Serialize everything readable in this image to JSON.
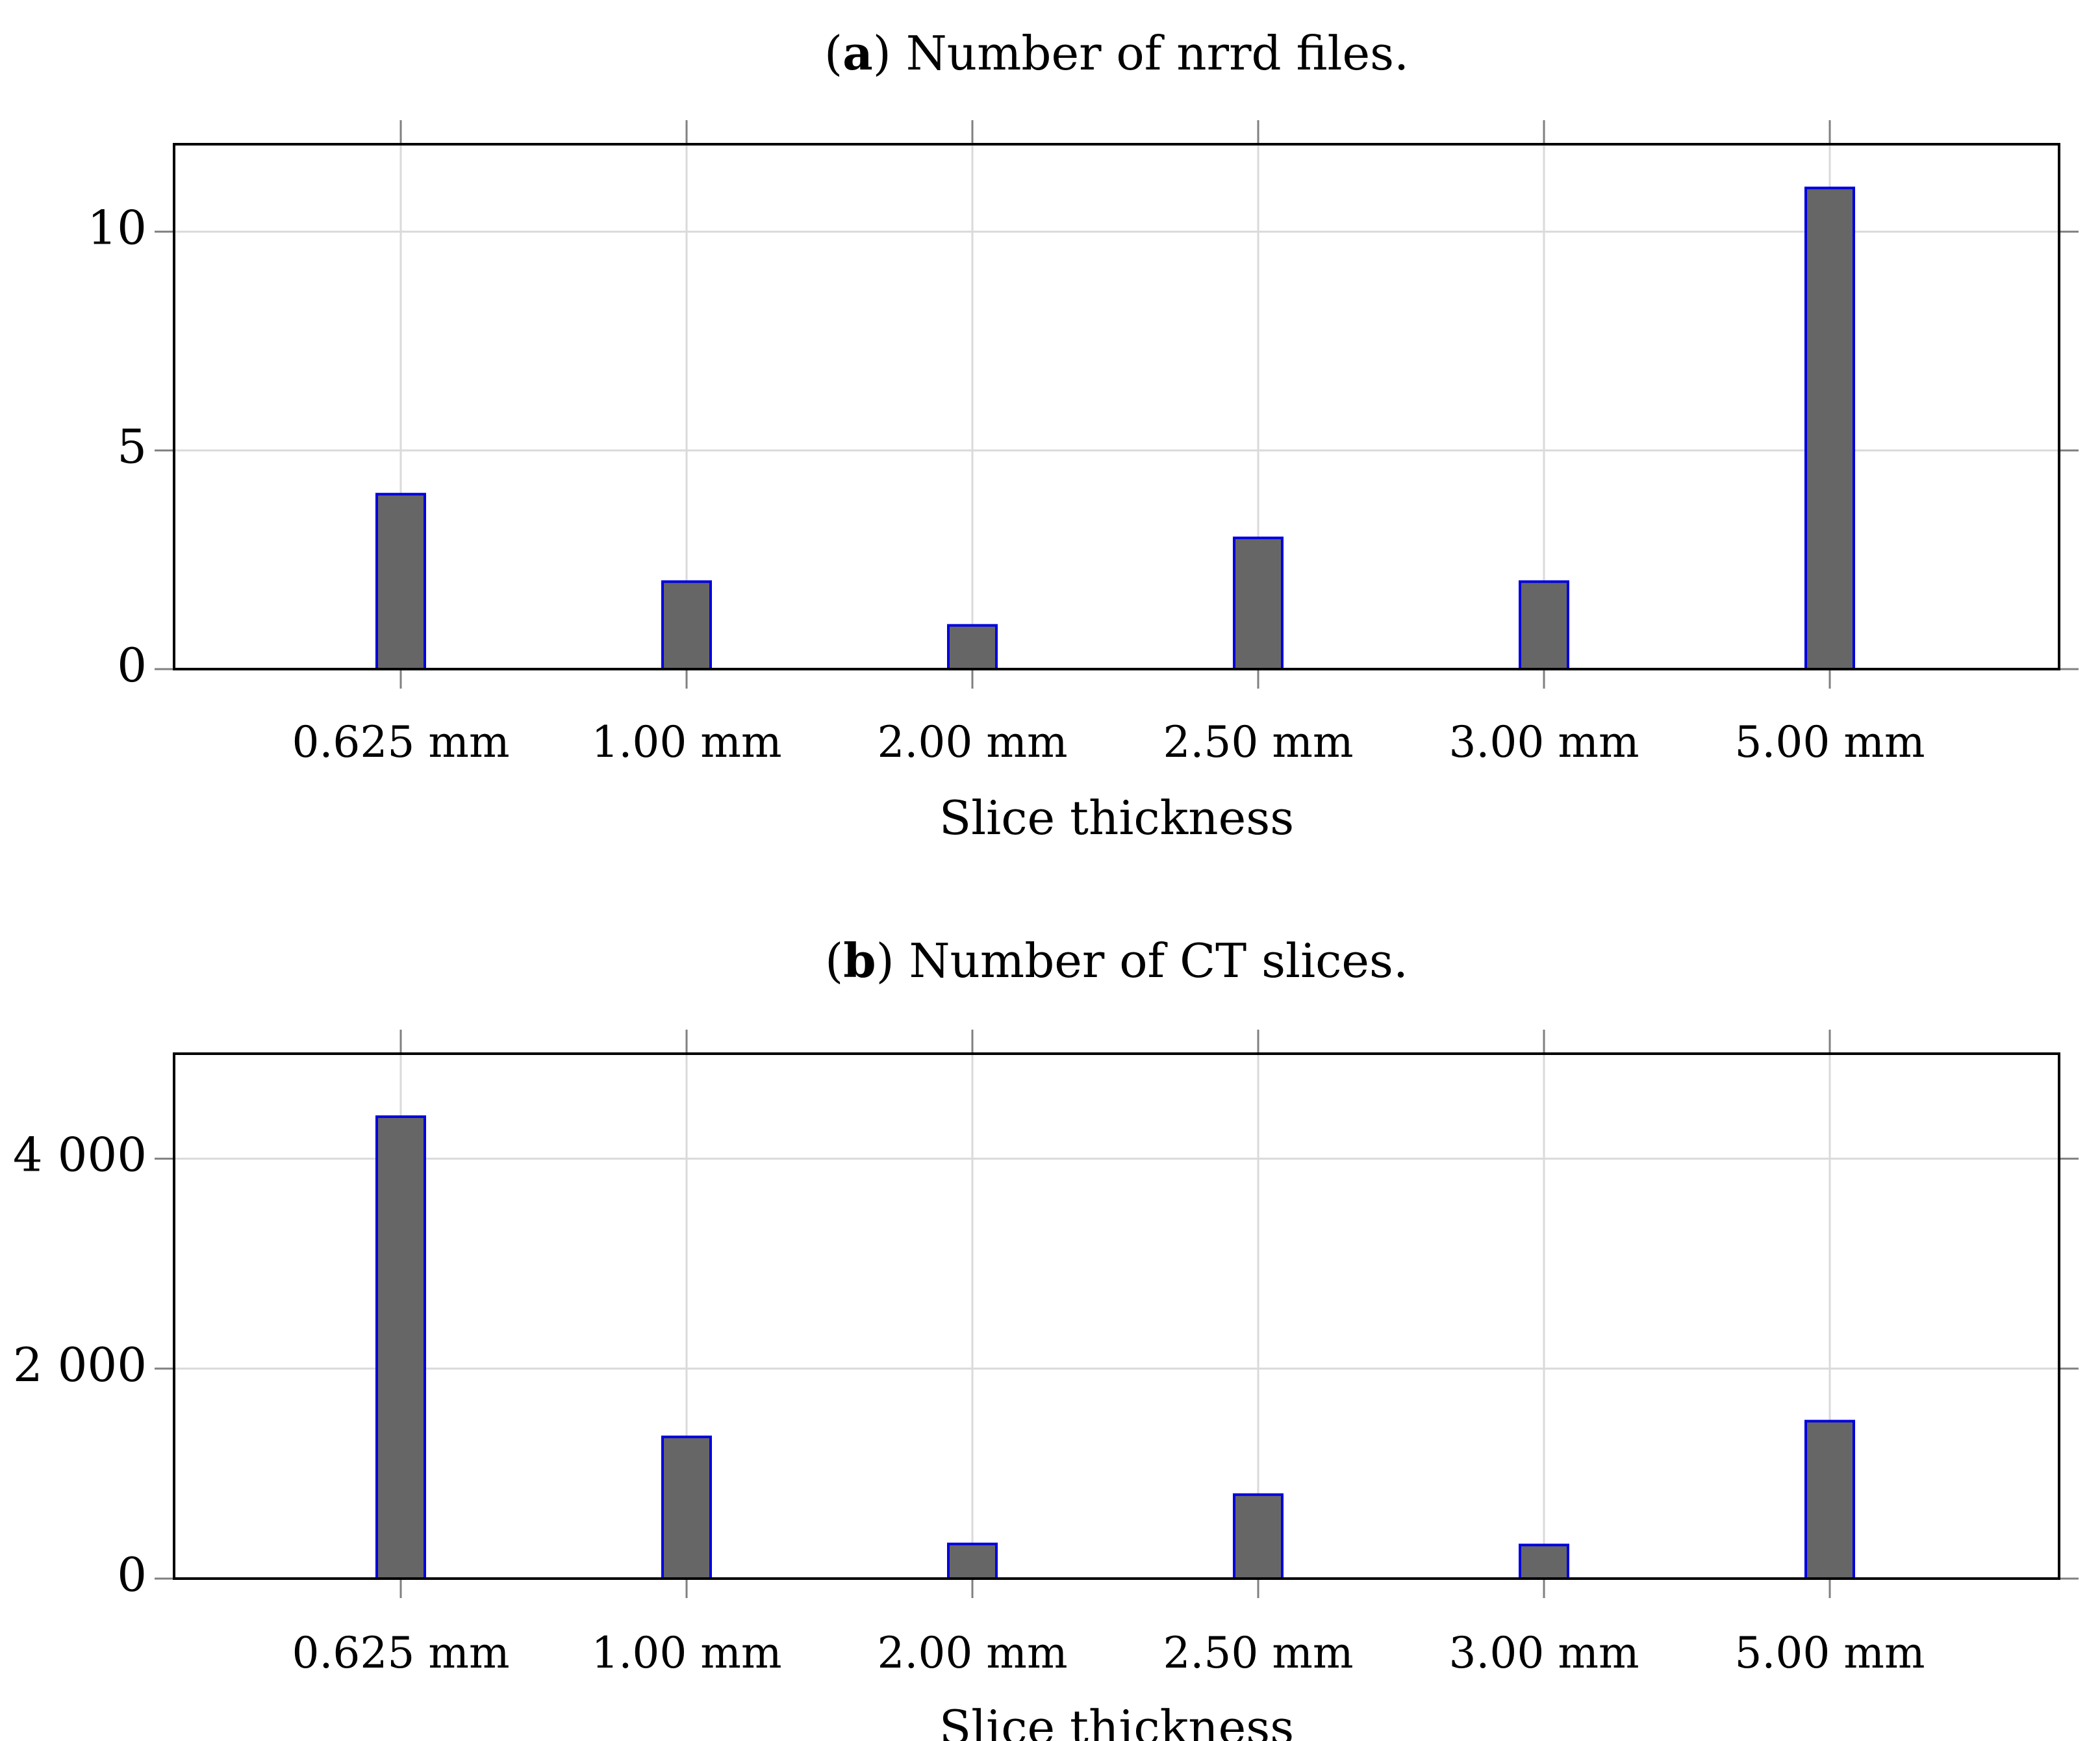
{
  "chart_data": [
    {
      "type": "bar",
      "title_prefix_open": "(",
      "title_letter": "a",
      "title_rest": ") Number of nrrd files.",
      "categories": [
        "0.625 mm",
        "1.00 mm",
        "2.00 mm",
        "2.50 mm",
        "3.00 mm",
        "5.00 mm"
      ],
      "values": [
        4,
        2,
        1,
        3,
        2,
        11
      ],
      "xlabel": "Slice thickness",
      "ylabel": "",
      "ylim": [
        0,
        12
      ],
      "yticks": [
        0,
        5,
        10
      ],
      "ytick_labels": [
        "0",
        "5",
        "10"
      ],
      "grid": true,
      "bar_fill": "#666666",
      "bar_stroke": "#0000e0"
    },
    {
      "type": "bar",
      "title_prefix_open": "(",
      "title_letter": "b",
      "title_rest": ") Number of CT slices.",
      "categories": [
        "0.625 mm",
        "1.00 mm",
        "2.00 mm",
        "2.50 mm",
        "3.00 mm",
        "5.00 mm"
      ],
      "values": [
        4400,
        1350,
        330,
        800,
        320,
        1500
      ],
      "xlabel": "Slice thickness",
      "ylabel": "",
      "ylim": [
        0,
        5000
      ],
      "yticks": [
        0,
        2000,
        4000
      ],
      "ytick_labels": [
        "0",
        "2 000",
        "4 000"
      ],
      "grid": true,
      "bar_fill": "#666666",
      "bar_stroke": "#0000e0"
    }
  ]
}
